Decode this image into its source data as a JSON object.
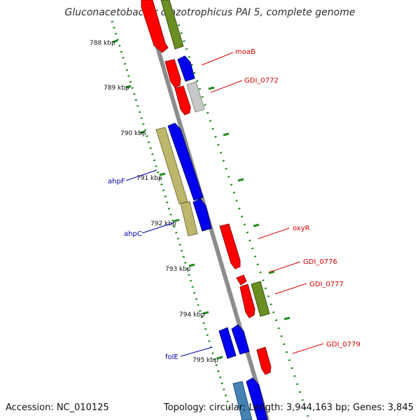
{
  "title": "Gluconacetobacter diazotrophicus PAI 5, complete genome",
  "footer": {
    "accession": "Accession: NC_010125",
    "summary": "Topology: circular; Length: 3,944,163 bp; Genes: 3,845"
  },
  "ticks": [
    "788 kbp",
    "789 kbp",
    "790 kbp",
    "791 kbp",
    "792 kbp",
    "793 kbp",
    "794 kbp",
    "795 kbp"
  ],
  "labels": {
    "moaB": "moaB",
    "gdi0772": "GDI_0772",
    "oxyR": "oxyR",
    "gdi0776": "GDI_0776",
    "gdi0777": "GDI_0777",
    "gdi0779": "GDI_0779",
    "ahpF": "ahpF",
    "ahpC": "ahpC",
    "folE": "folE"
  },
  "colors": {
    "backbone": "#8c8c8c",
    "red_gene": "#ff0000",
    "blue_gene": "#0000ee",
    "olive_gene": "#6b8e23",
    "khaki_gene": "#bdb76b",
    "gray_gene": "#c8c8c8",
    "light_blue_gene": "#4682b4",
    "green_dots": "#228b22",
    "red_label": "#dd0000",
    "blue_label": "#0000aa"
  }
}
